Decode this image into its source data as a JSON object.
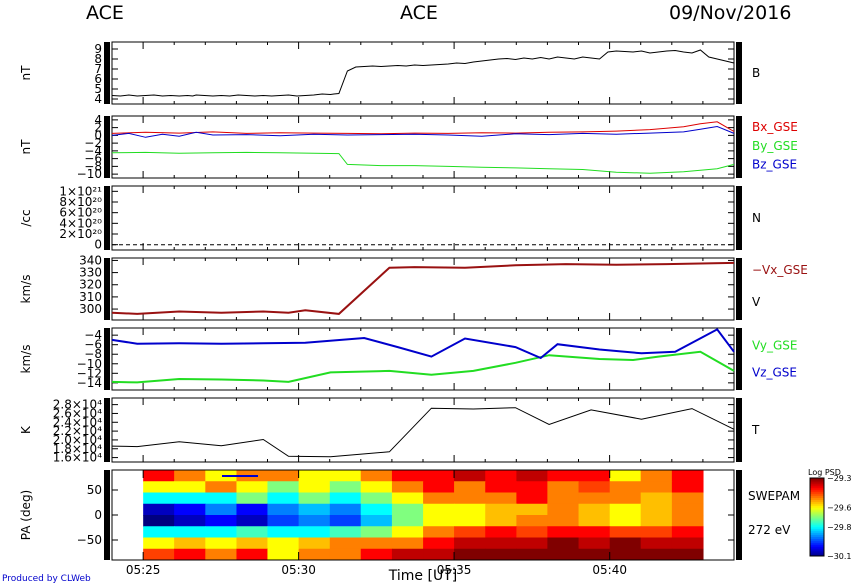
{
  "header": {
    "left": "ACE",
    "center": "ACE",
    "date": "09/Nov/2016"
  },
  "footer": "Produced by CLWeb",
  "colors": {
    "red": "#dd0000",
    "green": "#22dd22",
    "blue": "#0000cc",
    "darkred": "#991111",
    "black": "#000000"
  },
  "chart_data": [
    {
      "type": "line",
      "ylabel": "nT",
      "ylim": [
        3.5,
        9.7
      ],
      "yticks": [
        4,
        5,
        6,
        7,
        8,
        9
      ],
      "ytick_labels": [
        "4",
        "5",
        "6",
        "7",
        "8",
        "9"
      ],
      "series": [
        {
          "name": "B",
          "color": "#000000",
          "x": [
            5.4,
            5.45,
            5.5,
            5.55,
            5.6,
            5.65,
            5.7,
            5.75,
            5.8,
            5.85,
            5.88,
            5.9,
            5.95,
            6.0,
            6.05,
            6.1,
            6.15,
            6.2,
            6.25,
            6.3,
            6.35,
            6.4,
            6.45,
            6.5,
            6.55,
            6.6,
            6.65,
            6.7,
            6.72,
            6.75,
            6.8,
            6.85,
            6.9,
            6.95,
            7.0,
            7.05,
            7.1,
            7.15,
            7.2,
            7.25,
            7.3,
            7.35,
            7.4,
            7.45,
            7.5,
            7.55,
            7.6,
            7.65,
            7.7,
            7.75,
            7.8,
            7.85,
            7.9,
            7.95,
            8.0,
            8.05,
            8.1,
            8.15,
            8.2,
            8.25,
            8.3,
            8.35,
            8.4,
            8.45,
            8.5,
            8.55,
            8.6,
            8.65,
            8.7,
            8.75,
            8.8,
            8.85,
            8.9,
            8.95,
            9.0,
            9.05,
            9.1
          ],
          "y": [
            4.35,
            4.3,
            4.4,
            4.3,
            4.35,
            4.4,
            4.3,
            4.35,
            4.3,
            4.35,
            4.3,
            4.4,
            4.35,
            4.3,
            4.35,
            4.3,
            4.4,
            4.35,
            4.3,
            4.35,
            4.3,
            4.35,
            4.4,
            4.3,
            4.35,
            4.4,
            4.5,
            4.45,
            4.5,
            4.55,
            6.8,
            7.2,
            7.25,
            7.3,
            7.25,
            7.3,
            7.35,
            7.3,
            7.4,
            7.35,
            7.4,
            7.45,
            7.5,
            7.6,
            7.55,
            7.7,
            7.8,
            7.9,
            8.0,
            8.05,
            7.95,
            8.1,
            8.0,
            8.15,
            8.0,
            8.2,
            8.1,
            8.0,
            8.2,
            8.1,
            8.0,
            8.7,
            8.8,
            8.75,
            8.7,
            8.8,
            8.6,
            8.7,
            8.8,
            8.85,
            8.7,
            8.6,
            8.9,
            8.2,
            8.0,
            7.8,
            7.6
          ]
        }
      ]
    },
    {
      "type": "line",
      "ylabel": "nT",
      "ylim": [
        -11,
        5
      ],
      "yticks": [
        4,
        2,
        0,
        -2,
        -4,
        -6,
        -8,
        -10
      ],
      "ytick_labels": [
        "4",
        "2",
        "0",
        "−2",
        "−4",
        "−6",
        "−8",
        "−10"
      ],
      "series": [
        {
          "name": "Bx_GSE",
          "color": "#dd0000",
          "x": [
            5.4,
            5.6,
            5.8,
            6.0,
            6.2,
            6.4,
            6.6,
            6.8,
            7.0,
            7.2,
            7.4,
            7.6,
            7.8,
            8.0,
            8.2,
            8.4,
            8.6,
            8.8,
            8.9,
            9.0,
            9.1
          ],
          "y": [
            0.5,
            0.8,
            0.6,
            0.9,
            0.5,
            0.7,
            0.6,
            0.5,
            0.4,
            0.6,
            0.5,
            0.7,
            0.6,
            0.8,
            0.9,
            1.1,
            1.5,
            2.2,
            3.0,
            3.5,
            1.0
          ]
        },
        {
          "name": "By_GSE",
          "color": "#22dd22",
          "x": [
            5.4,
            5.6,
            5.8,
            6.0,
            6.2,
            6.4,
            6.6,
            6.75,
            6.8,
            7.0,
            7.2,
            7.4,
            7.6,
            7.8,
            8.0,
            8.2,
            8.4,
            8.6,
            8.8,
            9.0,
            9.1
          ],
          "y": [
            -4.5,
            -4.4,
            -4.6,
            -4.5,
            -4.4,
            -4.5,
            -4.6,
            -4.7,
            -7.5,
            -7.8,
            -7.8,
            -8.0,
            -8.2,
            -8.4,
            -8.6,
            -8.8,
            -9.5,
            -9.8,
            -9.4,
            -8.6,
            -7.5
          ]
        },
        {
          "name": "Bz_GSE",
          "color": "#0000cc",
          "x": [
            5.4,
            5.5,
            5.6,
            5.7,
            5.8,
            5.9,
            6.0,
            6.2,
            6.4,
            6.6,
            6.8,
            7.0,
            7.2,
            7.4,
            7.6,
            7.8,
            8.0,
            8.2,
            8.4,
            8.6,
            8.8,
            8.9,
            9.0,
            9.1
          ],
          "y": [
            0.0,
            0.5,
            -0.5,
            0.3,
            -0.2,
            0.8,
            0.1,
            0.2,
            -0.1,
            0.3,
            0.1,
            0.2,
            0.3,
            0.1,
            -0.2,
            0.4,
            0.2,
            0.5,
            0.3,
            0.6,
            0.9,
            1.6,
            2.3,
            0.5
          ]
        }
      ]
    },
    {
      "type": "line",
      "ylabel": "/cc",
      "ylim": [
        -1e+20,
        1.1e+21
      ],
      "yticks": [
        0,
        2e+20,
        4e+20,
        6e+20,
        8e+20,
        1e+21
      ],
      "ytick_labels": [
        "0",
        "2×10²⁰",
        "4×10²⁰",
        "6×10²⁰",
        "8×10²⁰",
        "1×10²¹"
      ],
      "series": [
        {
          "name": "N",
          "color": "#000000",
          "dashed": true,
          "x": [
            5.4,
            9.1
          ],
          "y": [
            0,
            0
          ]
        }
      ]
    },
    {
      "type": "line",
      "ylabel": "km/s",
      "ylim": [
        291,
        342
      ],
      "yticks": [
        300,
        310,
        320,
        330,
        340
      ],
      "ytick_labels": [
        "300",
        "310",
        "320",
        "330",
        "340"
      ],
      "series": [
        {
          "name": "−Vx_GSE",
          "label_line2": "V",
          "color": "#991111",
          "x": [
            5.4,
            5.55,
            5.8,
            6.05,
            6.3,
            6.45,
            6.55,
            6.75,
            7.05,
            7.2,
            7.5,
            7.8,
            8.1,
            8.4,
            8.7,
            9.1
          ],
          "y": [
            297,
            296,
            298,
            297,
            298,
            297,
            299,
            296,
            334,
            334.5,
            334,
            336,
            337,
            336.5,
            337,
            338
          ]
        }
      ]
    },
    {
      "type": "line",
      "ylabel": "km/s",
      "ylim": [
        -15.5,
        -2.5
      ],
      "yticks": [
        -4,
        -6,
        -8,
        -10,
        -12,
        -14
      ],
      "ytick_labels": [
        "−4",
        "−6",
        "−8",
        "−10",
        "−12",
        "−14"
      ],
      "series": [
        {
          "name": "Vy_GSE",
          "color": "#22dd22",
          "x": [
            5.4,
            5.55,
            5.8,
            6.05,
            6.3,
            6.45,
            6.7,
            7.05,
            7.3,
            7.55,
            7.8,
            8.0,
            8.3,
            8.5,
            8.65,
            8.9,
            9.1
          ],
          "y": [
            -13.8,
            -13.9,
            -13.2,
            -13.3,
            -13.5,
            -13.8,
            -11.8,
            -11.5,
            -12.3,
            -11.5,
            -9.8,
            -8.2,
            -9.0,
            -9.2,
            -8.5,
            -7.5,
            -11.5
          ]
        },
        {
          "name": "Vz_GSE",
          "color": "#0000cc",
          "x": [
            5.4,
            5.55,
            5.8,
            6.05,
            6.3,
            6.55,
            6.9,
            7.1,
            7.3,
            7.5,
            7.8,
            7.95,
            8.05,
            8.3,
            8.55,
            8.75,
            9.0,
            9.1
          ],
          "y": [
            -5.0,
            -5.8,
            -5.7,
            -5.8,
            -5.7,
            -5.6,
            -4.6,
            -6.5,
            -8.5,
            -4.7,
            -6.5,
            -8.8,
            -5.9,
            -7.0,
            -7.8,
            -7.5,
            -2.8,
            -7.5
          ]
        }
      ]
    },
    {
      "type": "line",
      "ylabel": "K",
      "ylim": [
        15000,
        29500
      ],
      "yticks": [
        16000,
        18000,
        20000,
        22000,
        24000,
        26000,
        28000
      ],
      "ytick_labels": [
        "1.6×10⁴",
        "1.8×10⁴",
        "2.0×10⁴",
        "2.2×10⁴",
        "2.4×10⁴",
        "2.6×10⁴",
        "2.8×10⁴"
      ],
      "series": [
        {
          "name": "T",
          "color": "#000000",
          "x": [
            5.4,
            5.55,
            5.8,
            6.05,
            6.3,
            6.45,
            6.7,
            7.05,
            7.3,
            7.55,
            7.8,
            8.0,
            8.25,
            8.55,
            8.85,
            9.1
          ],
          "y": [
            18600,
            18500,
            19600,
            18700,
            20100,
            16300,
            16200,
            17300,
            27200,
            27000,
            27300,
            23500,
            26800,
            24700,
            27100,
            22400
          ]
        }
      ]
    },
    {
      "type": "heatmap",
      "ylabel": "PA (deg)",
      "xlabel": "Time [UT]",
      "ylim": [
        -90,
        90
      ],
      "yticks": [
        50,
        0,
        -50
      ],
      "ytick_labels": [
        "50",
        "0",
        "−50"
      ],
      "xticks": [
        5.4167,
        5.5,
        5.5833,
        5.6667
      ],
      "xtick_labels": [
        "05:25",
        "05:30",
        "05:35",
        "05:40"
      ],
      "time_range": [
        5.4,
        5.7333
      ],
      "bins_deg": [
        [
          67.5,
          90
        ],
        [
          45,
          67.5
        ],
        [
          22.5,
          45
        ],
        [
          0,
          22.5
        ],
        [
          -22.5,
          0
        ],
        [
          -45,
          -22.5
        ],
        [
          -67.5,
          -45
        ],
        [
          -90,
          -67.5
        ]
      ],
      "label_line1": "SWEPAM",
      "label_line2": "272 eV",
      "colorbar": {
        "title": "Log PSD",
        "min": -30.1,
        "max": -29.3,
        "ticks": [
          -29.3,
          -29.6,
          -29.8,
          -30.1
        ],
        "tick_labels": [
          "−29.3",
          "−29.6",
          "−29.8",
          "−30.1"
        ]
      },
      "time_edges": [
        5.4167,
        5.4333,
        5.45,
        5.4667,
        5.4833,
        5.5,
        5.5167,
        5.5333,
        5.55,
        5.5667,
        5.5833,
        5.6,
        5.6167,
        5.6333,
        5.65,
        5.6667,
        5.6833,
        5.7,
        5.7167
      ],
      "z": [
        [
          -29.4,
          -29.5,
          -29.6,
          -29.5,
          -29.5,
          -29.6,
          -29.6,
          -29.5,
          -29.4,
          -29.4,
          -29.35,
          -29.4,
          -29.35,
          -29.4,
          -29.4,
          -29.6,
          -29.5,
          -29.4
        ],
        [
          -29.6,
          -29.6,
          -29.5,
          -29.6,
          -29.7,
          -29.6,
          -29.7,
          -29.6,
          -29.5,
          -29.4,
          -29.5,
          -29.4,
          -29.4,
          -29.5,
          -29.45,
          -29.5,
          -29.5,
          -29.4
        ],
        [
          -29.8,
          -29.8,
          -29.8,
          -29.7,
          -29.8,
          -29.7,
          -29.8,
          -29.7,
          -29.6,
          -29.5,
          -29.5,
          -29.5,
          -29.4,
          -29.5,
          -29.5,
          -29.5,
          -29.55,
          -29.5
        ],
        [
          -30.05,
          -30.0,
          -29.9,
          -30.0,
          -29.9,
          -29.85,
          -29.9,
          -29.8,
          -29.7,
          -29.6,
          -29.6,
          -29.55,
          -29.55,
          -29.5,
          -29.55,
          -29.6,
          -29.55,
          -29.5
        ],
        [
          -30.1,
          -30.05,
          -30.0,
          -30.05,
          -29.95,
          -29.9,
          -29.95,
          -29.85,
          -29.7,
          -29.6,
          -29.6,
          -29.55,
          -29.5,
          -29.5,
          -29.55,
          -29.6,
          -29.55,
          -29.5
        ],
        [
          -29.8,
          -29.8,
          -29.8,
          -29.75,
          -29.8,
          -29.8,
          -29.75,
          -29.7,
          -29.6,
          -29.5,
          -29.45,
          -29.4,
          -29.45,
          -29.4,
          -29.4,
          -29.45,
          -29.45,
          -29.4
        ],
        [
          -29.6,
          -29.55,
          -29.6,
          -29.55,
          -29.6,
          -29.55,
          -29.5,
          -29.5,
          -29.5,
          -29.4,
          -29.35,
          -29.35,
          -29.35,
          -29.3,
          -29.35,
          -29.3,
          -29.35,
          -29.35
        ],
        [
          -29.45,
          -29.4,
          -29.5,
          -29.4,
          -29.6,
          -29.5,
          -29.5,
          -29.4,
          -29.35,
          -29.35,
          -29.3,
          -29.3,
          -29.3,
          -29.3,
          -29.3,
          -29.3,
          -29.3,
          -29.3
        ]
      ]
    }
  ]
}
